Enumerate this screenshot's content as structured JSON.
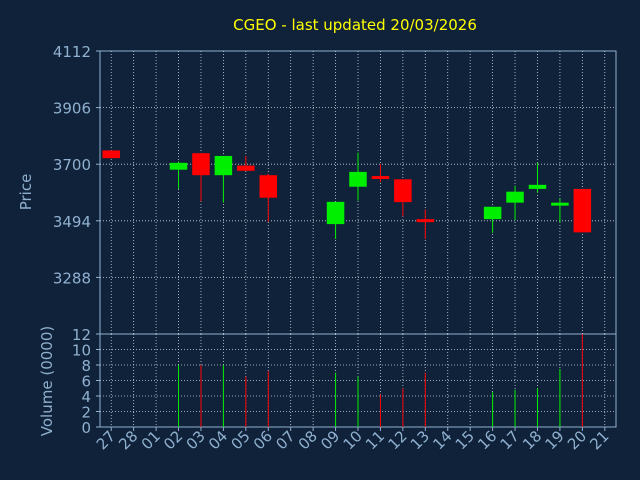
{
  "chart_data": {
    "type": "candlestick",
    "title": "CGEO - last updated 20/03/2026",
    "xlabel": "Day",
    "price_panel": {
      "ylabel": "Price",
      "yticks": [
        "4112",
        "3906",
        "3700",
        "3494",
        "3288"
      ],
      "ylim": [
        3082,
        4112
      ],
      "grid": true
    },
    "volume_panel": {
      "ylabel": "Volume (0000)",
      "yticks": [
        "0",
        "2",
        "4",
        "6",
        "8",
        "10",
        "12"
      ],
      "ylim": [
        0,
        12
      ],
      "grid": true
    },
    "x_ticks": [
      "27",
      "28",
      "01",
      "02",
      "03",
      "04",
      "05",
      "06",
      "07",
      "08",
      "09",
      "10",
      "11",
      "12",
      "13",
      "14",
      "15",
      "16",
      "17",
      "18",
      "19",
      "20",
      "21"
    ],
    "candles": [
      {
        "day": "27",
        "open": 3750,
        "close": 3722,
        "high": 3750,
        "low": 3722,
        "volume": 0,
        "color": "#ff0000"
      },
      {
        "day": "02",
        "open": 3680,
        "close": 3705,
        "high": 3710,
        "low": 3610,
        "volume": 8,
        "color": "#00ee00"
      },
      {
        "day": "03",
        "open": 3740,
        "close": 3660,
        "high": 3740,
        "low": 3565,
        "volume": 8,
        "color": "#ff0000"
      },
      {
        "day": "04",
        "open": 3660,
        "close": 3730,
        "high": 3730,
        "low": 3560,
        "volume": 8,
        "color": "#00ee00"
      },
      {
        "day": "05",
        "open": 3695,
        "close": 3676,
        "high": 3730,
        "low": 3676,
        "volume": 6.5,
        "color": "#ff0000"
      },
      {
        "day": "06",
        "open": 3660,
        "close": 3578,
        "high": 3665,
        "low": 3490,
        "volume": 7.2,
        "color": "#ff0000"
      },
      {
        "day": "09",
        "open": 3482,
        "close": 3563,
        "high": 3563,
        "low": 3428,
        "volume": 7,
        "color": "#00ee00"
      },
      {
        "day": "10",
        "open": 3618,
        "close": 3672,
        "high": 3742,
        "low": 3568,
        "volume": 6.5,
        "color": "#00ee00"
      },
      {
        "day": "11",
        "open": 3657,
        "close": 3647,
        "high": 3700,
        "low": 3635,
        "volume": 4.2,
        "color": "#ff0000"
      },
      {
        "day": "12",
        "open": 3645,
        "close": 3562,
        "high": 3645,
        "low": 3510,
        "volume": 5,
        "color": "#ff0000"
      },
      {
        "day": "13",
        "open": 3500,
        "close": 3492,
        "high": 3535,
        "low": 3428,
        "volume": 7,
        "color": "#ff0000"
      },
      {
        "day": "16",
        "open": 3500,
        "close": 3545,
        "high": 3545,
        "low": 3450,
        "volume": 4.5,
        "color": "#00ee00"
      },
      {
        "day": "17",
        "open": 3560,
        "close": 3600,
        "high": 3622,
        "low": 3496,
        "volume": 4.8,
        "color": "#00ee00"
      },
      {
        "day": "18",
        "open": 3610,
        "close": 3625,
        "high": 3705,
        "low": 3596,
        "volume": 5,
        "color": "#00ee00"
      },
      {
        "day": "19",
        "open": 3550,
        "close": 3560,
        "high": 3575,
        "low": 3488,
        "volume": 7.5,
        "color": "#00ee00"
      },
      {
        "day": "20",
        "open": 3610,
        "close": 3452,
        "high": 3610,
        "low": 3452,
        "volume": 12,
        "color": "#ff0000"
      }
    ]
  },
  "colors": {
    "background": "#10223a",
    "axis_text": "#8fb0cf",
    "title": "#ffff00",
    "grid": "#c8d4e0",
    "up": "#00ee00",
    "down": "#ff0000"
  }
}
